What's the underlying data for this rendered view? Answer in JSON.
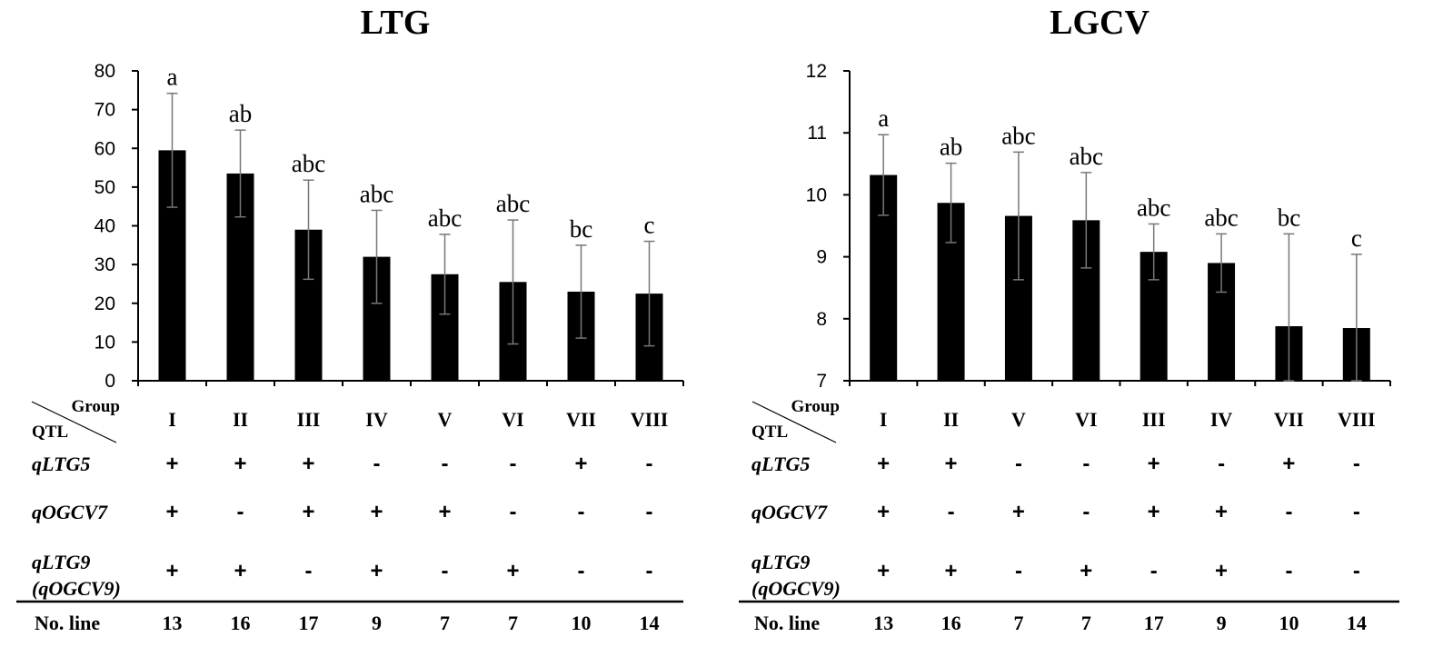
{
  "chart_data": [
    {
      "type": "bar",
      "title": "LTG",
      "ylim": [
        0,
        80
      ],
      "yticks": [
        "0",
        "10",
        "20",
        "30",
        "40",
        "50",
        "60",
        "70",
        "80"
      ],
      "categories": [
        "I",
        "II",
        "III",
        "IV",
        "V",
        "VI",
        "VII",
        "VIII"
      ],
      "values": [
        59.5,
        53.5,
        39.0,
        32.0,
        27.5,
        25.5,
        23.0,
        22.5
      ],
      "errors": [
        14.7,
        11.2,
        12.8,
        12.0,
        10.3,
        16.0,
        12.0,
        13.5
      ],
      "letters": [
        "a",
        "ab",
        "abc",
        "abc",
        "abc",
        "abc",
        "bc",
        "c"
      ],
      "table": {
        "group_header": "Group",
        "qtl_header": "QTL",
        "rows": [
          {
            "name": "qLTG5",
            "sub": "",
            "marks": [
              "+",
              "+",
              "+",
              "-",
              "-",
              "-",
              "+",
              "-"
            ]
          },
          {
            "name": "qOGCV7",
            "sub": "",
            "marks": [
              "+",
              "-",
              "+",
              "+",
              "+",
              "-",
              "-",
              "-"
            ]
          },
          {
            "name": "qLTG9",
            "sub": "(qOGCV9)",
            "marks": [
              "+",
              "+",
              "-",
              "+",
              "-",
              "+",
              "-",
              "-"
            ]
          }
        ],
        "line_label": "No. line",
        "line_counts": [
          "13",
          "16",
          "17",
          "9",
          "7",
          "7",
          "10",
          "14"
        ]
      }
    },
    {
      "type": "bar",
      "title": "LGCV",
      "ylim": [
        7,
        12
      ],
      "yticks": [
        "7",
        "8",
        "9",
        "10",
        "11",
        "12"
      ],
      "categories": [
        "I",
        "II",
        "V",
        "VI",
        "III",
        "IV",
        "VII",
        "VIII"
      ],
      "values": [
        10.32,
        9.87,
        9.66,
        9.59,
        9.08,
        8.9,
        7.88,
        7.85
      ],
      "errors": [
        0.65,
        0.64,
        1.03,
        0.77,
        0.45,
        0.47,
        1.49,
        1.19
      ],
      "letters": [
        "a",
        "ab",
        "abc",
        "abc",
        "abc",
        "abc",
        "bc",
        "c"
      ],
      "table": {
        "group_header": "Group",
        "qtl_header": "QTL",
        "rows": [
          {
            "name": "qLTG5",
            "sub": "",
            "marks": [
              "+",
              "+",
              "-",
              "-",
              "+",
              "-",
              "+",
              "-"
            ]
          },
          {
            "name": "qOGCV7",
            "sub": "",
            "marks": [
              "+",
              "-",
              "+",
              "-",
              "+",
              "+",
              "-",
              "-"
            ]
          },
          {
            "name": "qLTG9",
            "sub": "(qOGCV9)",
            "marks": [
              "+",
              "+",
              "-",
              "+",
              "-",
              "+",
              "-",
              "-"
            ]
          }
        ],
        "line_label": "No. line",
        "line_counts": [
          "13",
          "16",
          "7",
          "7",
          "17",
          "9",
          "10",
          "14"
        ]
      }
    }
  ]
}
